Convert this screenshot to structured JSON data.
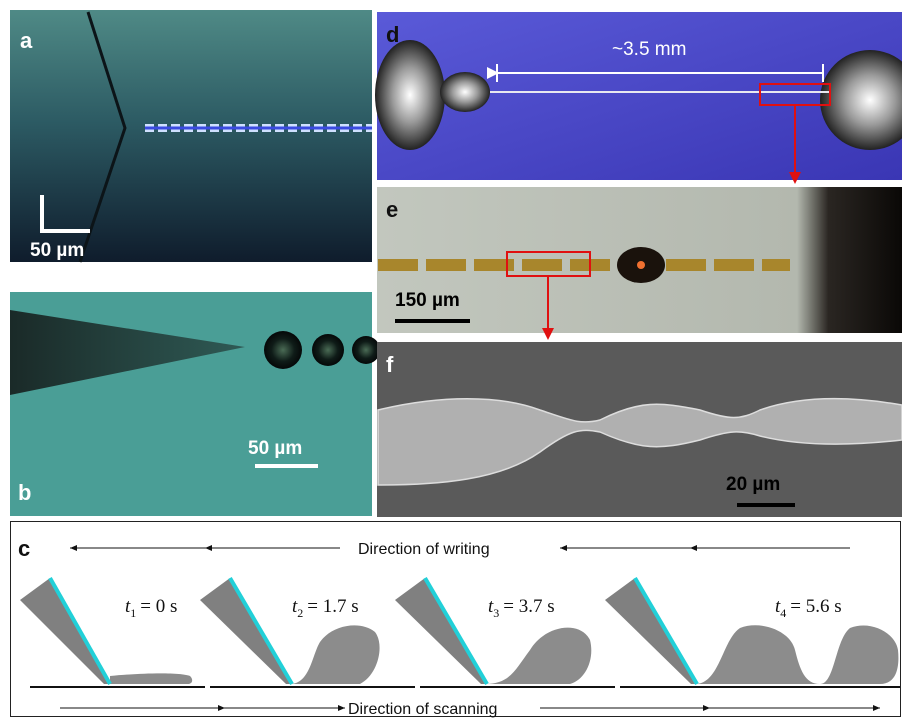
{
  "panels": {
    "a": {
      "label": "a",
      "scale_bar": "50 µm"
    },
    "b": {
      "label": "b",
      "scale_bar": "50 µm"
    },
    "d": {
      "label": "d",
      "length": "~3.5 mm"
    },
    "e": {
      "label": "e",
      "scale_bar": "150 µm"
    },
    "f": {
      "label": "f",
      "scale_bar": "20 µm"
    },
    "c": {
      "label": "c",
      "top_arrow": "Direction of writing",
      "bottom_arrow": "Direction of scanning",
      "times": [
        {
          "symbol": "t",
          "subscript": "1",
          "value": "= 0 s"
        },
        {
          "symbol": "t",
          "subscript": "2",
          "value": "= 1.7 s"
        },
        {
          "symbol": "t",
          "subscript": "3",
          "value": "= 3.7 s"
        },
        {
          "symbol": "t",
          "subscript": "4",
          "value": "= 5.6 s"
        }
      ]
    }
  }
}
